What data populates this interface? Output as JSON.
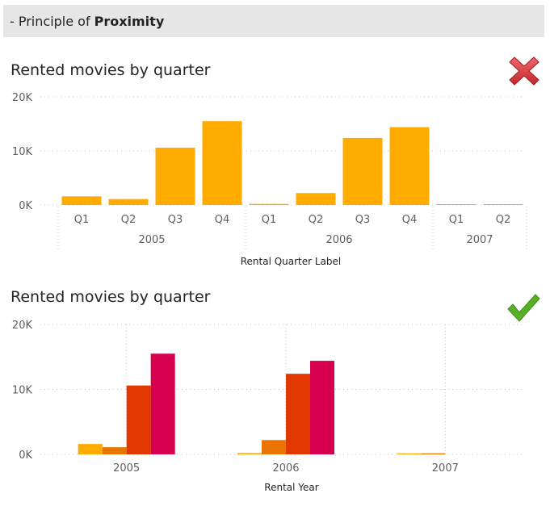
{
  "header": {
    "prefix": "- Principle of",
    "emphasis": "Proximity"
  },
  "icons": {
    "bad": "red-cross-icon",
    "good": "green-check-icon",
    "bad_color": "#d13438",
    "good_color": "#4caf20"
  },
  "chart_data": [
    {
      "type": "bar",
      "title": "Rented movies by quarter",
      "xlabel": "Rental Quarter Label",
      "ylabel": "",
      "ylim": [
        0,
        20000
      ],
      "yticks": [
        "0K",
        "10K",
        "20K"
      ],
      "color": "#ffab00",
      "groups": [
        {
          "year": "2005",
          "quarters": [
            "Q1",
            "Q2",
            "Q3",
            "Q4"
          ],
          "values": [
            1600,
            1100,
            10600,
            15500
          ]
        },
        {
          "year": "2006",
          "quarters": [
            "Q1",
            "Q2",
            "Q3",
            "Q4"
          ],
          "values": [
            200,
            2200,
            12400,
            14400
          ]
        },
        {
          "year": "2007",
          "quarters": [
            "Q1",
            "Q2"
          ],
          "values": [
            150,
            150
          ]
        }
      ]
    },
    {
      "type": "bar",
      "title": "Rented movies by quarter",
      "xlabel": "Rental Year",
      "ylabel": "",
      "ylim": [
        0,
        20000
      ],
      "yticks": [
        "0K",
        "10K",
        "20K"
      ],
      "categories": [
        "2005",
        "2006",
        "2007"
      ],
      "series_colors": [
        "#ffab00",
        "#e97400",
        "#e33700",
        "#d6004f"
      ],
      "series": [
        {
          "values": [
            1600,
            200,
            150
          ]
        },
        {
          "values": [
            1100,
            2200,
            150
          ]
        },
        {
          "values": [
            10600,
            12400,
            0
          ]
        },
        {
          "values": [
            15500,
            14400,
            0
          ]
        }
      ]
    }
  ]
}
